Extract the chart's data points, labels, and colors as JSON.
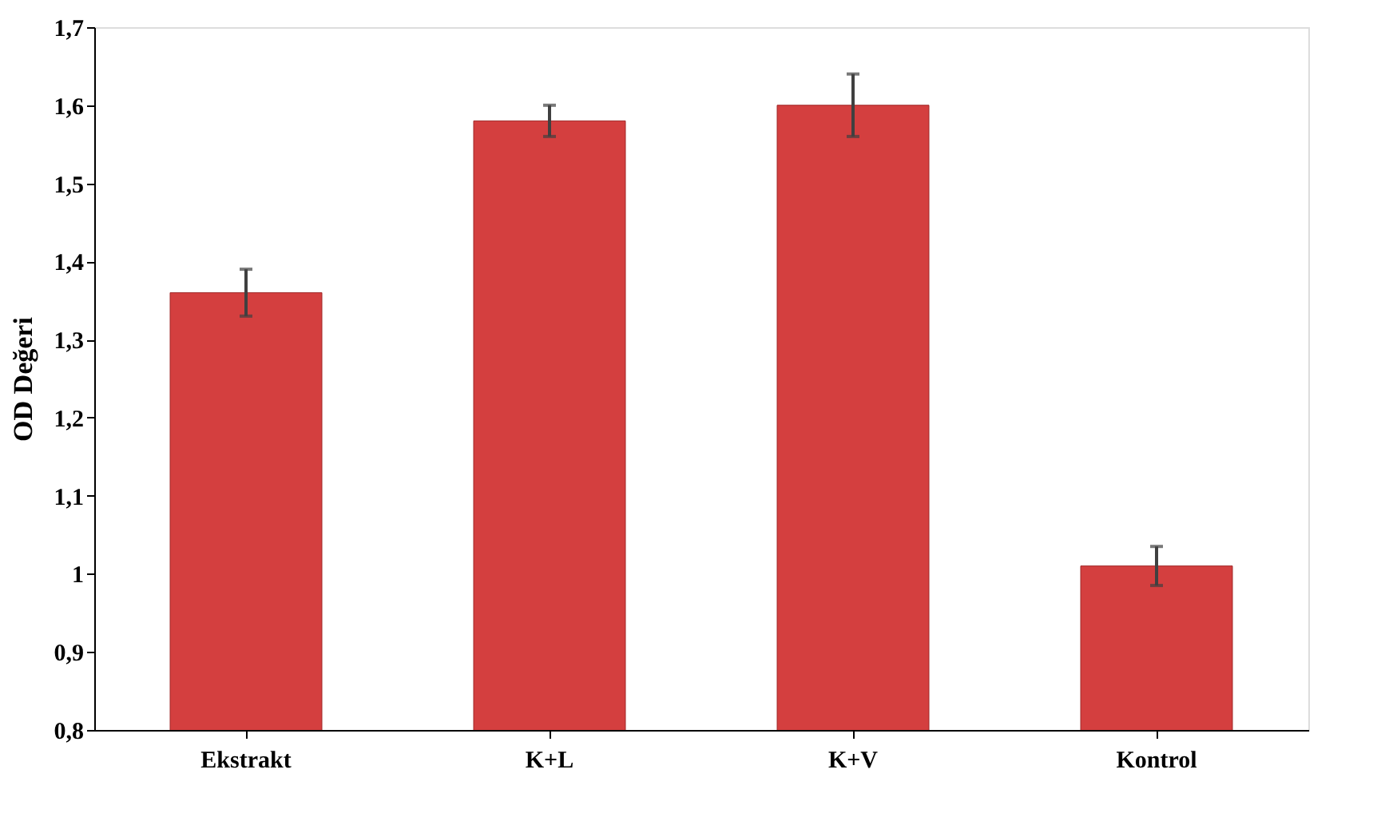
{
  "chart_data": {
    "type": "bar",
    "ylabel": "OD Değeri",
    "categories": [
      "Ekstrakt",
      "K+L",
      "K+V",
      "Kontrol"
    ],
    "values": [
      1.36,
      1.58,
      1.6,
      1.01
    ],
    "errors": [
      0.03,
      0.02,
      0.04,
      0.025
    ],
    "color": "#d43f3f",
    "ylim": [
      0.8,
      1.7
    ],
    "yticks": [
      {
        "value": 0.8,
        "label": "0,8"
      },
      {
        "value": 0.9,
        "label": "0,9"
      },
      1,
      {
        "value": 1.1,
        "label": "1,1"
      },
      {
        "value": 1.2,
        "label": "1,2"
      },
      {
        "value": 1.3,
        "label": "1,3"
      },
      {
        "value": 1.4,
        "label": "1,4"
      },
      {
        "value": 1.5,
        "label": "1,5"
      },
      {
        "value": 1.6,
        "label": "1,6"
      },
      {
        "value": 1.7,
        "label": "1,7"
      }
    ],
    "grid": false
  }
}
